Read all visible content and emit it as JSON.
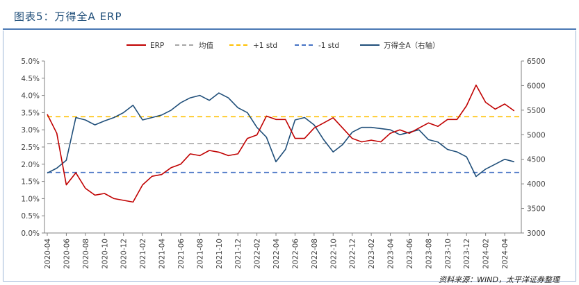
{
  "header": {
    "title": "图表5：万得全A ERP"
  },
  "source": "资料来源：WIND，太平洋证券整理",
  "colors": {
    "erp": "#c00000",
    "mean": "#a6a6a6",
    "plus1": "#ffc000",
    "minus1": "#4472c4",
    "index": "#1f4e79",
    "title": "#1f4e79"
  },
  "chart_data": {
    "type": "line",
    "title": "",
    "xlabel": "",
    "ylabel": "",
    "y2label": "",
    "ylim": [
      0.0,
      5.0
    ],
    "y2lim": [
      3000,
      6500
    ],
    "yticks": [
      "0.0%",
      "0.5%",
      "1.0%",
      "1.5%",
      "2.0%",
      "2.5%",
      "3.0%",
      "3.5%",
      "4.0%",
      "4.5%",
      "5.0%"
    ],
    "y2ticks": [
      "3000",
      "3500",
      "4000",
      "4500",
      "5000",
      "5500",
      "6000",
      "6500"
    ],
    "xticks": [
      "2020-04",
      "2020-06",
      "2020-08",
      "2020-10",
      "2020-12",
      "2021-02",
      "2021-04",
      "2021-06",
      "2021-08",
      "2021-10",
      "2021-12",
      "2022-02",
      "2022-04",
      "2022-06",
      "2022-08",
      "2022-10",
      "2022-12",
      "2023-02",
      "2023-04",
      "2023-06",
      "2023-08",
      "2023-10",
      "2023-12",
      "2024-02",
      "2024-04"
    ],
    "legend": [
      "ERP",
      "均值",
      "+1 std",
      "-1 std",
      "万得全A（右轴）"
    ],
    "legend_position": "top",
    "grid": false,
    "reference_lines": {
      "mean": 2.6,
      "plus1_std": 3.38,
      "minus1_std": 1.76
    },
    "series": [
      {
        "name": "ERP",
        "axis": "left",
        "x": [
          "2020-04",
          "2020-05",
          "2020-06",
          "2020-07",
          "2020-08",
          "2020-09",
          "2020-10",
          "2020-11",
          "2020-12",
          "2021-01",
          "2021-02",
          "2021-03",
          "2021-04",
          "2021-05",
          "2021-06",
          "2021-07",
          "2021-08",
          "2021-09",
          "2021-10",
          "2021-11",
          "2021-12",
          "2022-01",
          "2022-02",
          "2022-03",
          "2022-04",
          "2022-05",
          "2022-06",
          "2022-07",
          "2022-08",
          "2022-09",
          "2022-10",
          "2022-11",
          "2022-12",
          "2023-01",
          "2023-02",
          "2023-03",
          "2023-04",
          "2023-05",
          "2023-06",
          "2023-07",
          "2023-08",
          "2023-09",
          "2023-10",
          "2023-11",
          "2023-12",
          "2024-01",
          "2024-02",
          "2024-03",
          "2024-04",
          "2024-05"
        ],
        "values": [
          3.45,
          2.9,
          1.4,
          1.75,
          1.3,
          1.1,
          1.15,
          1.0,
          0.95,
          0.9,
          1.4,
          1.65,
          1.7,
          1.9,
          2.0,
          2.3,
          2.25,
          2.4,
          2.35,
          2.25,
          2.3,
          2.75,
          2.85,
          3.4,
          3.3,
          3.3,
          2.75,
          2.75,
          3.05,
          3.2,
          3.35,
          3.05,
          2.75,
          2.65,
          2.7,
          2.65,
          2.9,
          3.0,
          2.9,
          3.05,
          3.2,
          3.1,
          3.3,
          3.3,
          3.7,
          4.3,
          3.8,
          3.6,
          3.75,
          3.55
        ]
      },
      {
        "name": "万得全A（右轴）",
        "axis": "right",
        "x": [
          "2020-04",
          "2020-05",
          "2020-06",
          "2020-07",
          "2020-08",
          "2020-09",
          "2020-10",
          "2020-11",
          "2020-12",
          "2021-01",
          "2021-02",
          "2021-03",
          "2021-04",
          "2021-05",
          "2021-06",
          "2021-07",
          "2021-08",
          "2021-09",
          "2021-10",
          "2021-11",
          "2021-12",
          "2022-01",
          "2022-02",
          "2022-03",
          "2022-04",
          "2022-05",
          "2022-06",
          "2022-07",
          "2022-08",
          "2022-09",
          "2022-10",
          "2022-11",
          "2022-12",
          "2023-01",
          "2023-02",
          "2023-04",
          "2023-05",
          "2023-06",
          "2023-07",
          "2023-08",
          "2023-09",
          "2023-10",
          "2023-11",
          "2023-12",
          "2024-01",
          "2024-02",
          "2024-03",
          "2024-04",
          "2024-05"
        ],
        "values": [
          4220,
          4320,
          4480,
          5350,
          5300,
          5200,
          5280,
          5350,
          5450,
          5600,
          5300,
          5350,
          5400,
          5500,
          5650,
          5750,
          5800,
          5700,
          5850,
          5750,
          5550,
          5450,
          5150,
          4950,
          4450,
          4700,
          5300,
          5350,
          5200,
          4900,
          4650,
          4800,
          5050,
          5150,
          5150,
          5100,
          5000,
          5050,
          5100,
          4900,
          4850,
          4700,
          4650,
          4550,
          4150,
          4300,
          4400,
          4500,
          4450
        ]
      }
    ]
  }
}
